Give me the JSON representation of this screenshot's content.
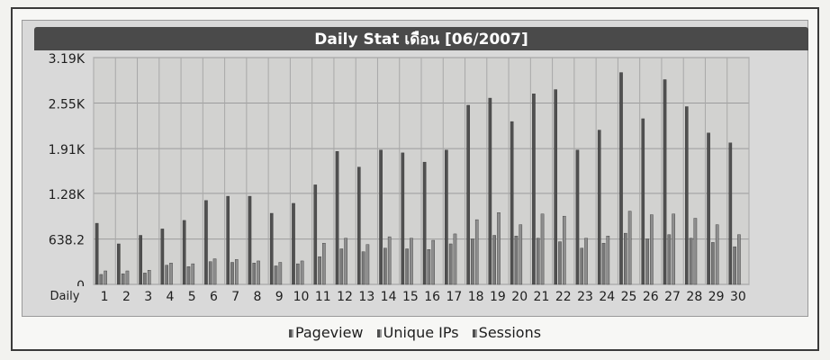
{
  "chart_data": {
    "type": "bar",
    "title": "Daily Stat เดือน [06/2007]",
    "xlabel": "Daily",
    "ylabel": "",
    "ylim": [
      0,
      3190
    ],
    "ytick_values": [
      0,
      638.2,
      1280,
      1910,
      2550,
      3190
    ],
    "ytick_labels": [
      "0",
      "638.2",
      "1.28K",
      "1.91K",
      "2.55K",
      "3.19K"
    ],
    "categories": [
      "1",
      "2",
      "3",
      "4",
      "5",
      "6",
      "7",
      "8",
      "9",
      "10",
      "11",
      "12",
      "13",
      "14",
      "15",
      "16",
      "17",
      "18",
      "19",
      "20",
      "21",
      "22",
      "23",
      "24",
      "25",
      "26",
      "27",
      "28",
      "29",
      "30"
    ],
    "series": [
      {
        "name": "Pageview",
        "values": [
          860,
          570,
          690,
          780,
          900,
          1180,
          1240,
          1240,
          1000,
          1140,
          1400,
          1870,
          1650,
          1890,
          1850,
          1720,
          1890,
          2520,
          2620,
          2290,
          2680,
          2740,
          1890,
          2170,
          2980,
          2330,
          2880,
          2500,
          2130,
          1990
        ]
      },
      {
        "name": "Unique IPs",
        "values": [
          140,
          150,
          160,
          270,
          250,
          320,
          310,
          300,
          260,
          290,
          390,
          500,
          460,
          510,
          500,
          490,
          570,
          640,
          690,
          680,
          650,
          600,
          510,
          580,
          720,
          640,
          700,
          650,
          590,
          530
        ]
      },
      {
        "name": "Sessions",
        "values": [
          190,
          190,
          200,
          300,
          290,
          360,
          350,
          330,
          310,
          330,
          580,
          650,
          560,
          670,
          650,
          620,
          710,
          910,
          1010,
          840,
          990,
          960,
          650,
          680,
          1030,
          980,
          990,
          930,
          840,
          700
        ]
      }
    ],
    "colors": {
      "Pageview": "#505050",
      "Unique IPs": "#7a7a7a",
      "Sessions": "#8e8e8e"
    },
    "grid": true,
    "legend_position": "bottom-center"
  },
  "legend": {
    "items": [
      "Pageview",
      "Unique IPs",
      "Sessions"
    ]
  }
}
